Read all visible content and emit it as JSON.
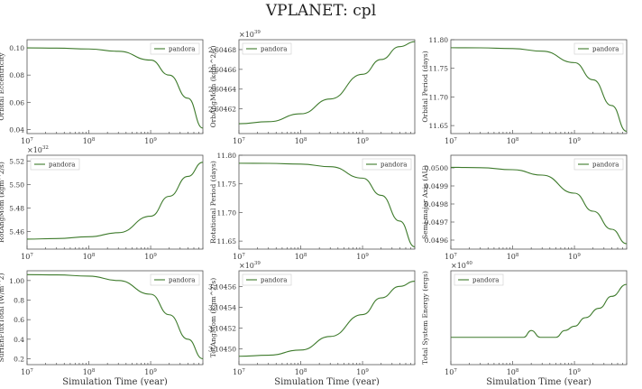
{
  "figure": {
    "title": "VPLANET: cpl",
    "line_color": "#3d7a2b",
    "frame_color": "#555555"
  },
  "chart_data": [
    {
      "type": "line",
      "ylabel": "Orbital Eccentricity",
      "xlabel": "",
      "xscale": "log",
      "xlim": [
        10000000,
        7000000000
      ],
      "ylim": [
        0.037,
        0.106
      ],
      "xticks": [
        {
          "v": 10000000,
          "label": "10",
          "sup": "7"
        },
        {
          "v": 100000000,
          "label": "10",
          "sup": "8"
        },
        {
          "v": 1000000000,
          "label": "10",
          "sup": "9"
        }
      ],
      "yticks": [
        {
          "v": 0.04,
          "label": "0.04"
        },
        {
          "v": 0.06,
          "label": "0.06"
        },
        {
          "v": 0.08,
          "label": "0.08"
        },
        {
          "v": 0.1,
          "label": "0.10"
        }
      ],
      "offset": "",
      "legend": {
        "label": "pandora",
        "loc": "top-right"
      },
      "series": [
        {
          "name": "pandora",
          "x": [
            10000000,
            30000000,
            100000000,
            300000000,
            1000000000,
            2000000000,
            4000000000,
            7000000000
          ],
          "y": [
            0.1,
            0.0998,
            0.0992,
            0.0975,
            0.091,
            0.08,
            0.063,
            0.041
          ]
        }
      ]
    },
    {
      "type": "line",
      "ylabel": "OrbAngMom (kgm^2/s)",
      "xlabel": "",
      "xscale": "log",
      "xlim": [
        10000000,
        7000000000
      ],
      "ylim": [
        2.604595,
        2.60469
      ],
      "xticks": [
        {
          "v": 10000000,
          "label": "10",
          "sup": "7"
        },
        {
          "v": 100000000,
          "label": "10",
          "sup": "8"
        },
        {
          "v": 1000000000,
          "label": "10",
          "sup": "9"
        }
      ],
      "yticks": [
        {
          "v": 2.60462,
          "label": "2.60462"
        },
        {
          "v": 2.60464,
          "label": "2.60464"
        },
        {
          "v": 2.60466,
          "label": "2.60466"
        },
        {
          "v": 2.60468,
          "label": "2.60468"
        }
      ],
      "offset": "×10",
      "offset_exp": "39",
      "legend": {
        "label": "pandora",
        "loc": "top-left"
      },
      "series": [
        {
          "name": "pandora",
          "x": [
            10000000,
            30000000,
            100000000,
            300000000,
            1000000000,
            2000000000,
            4000000000,
            7000000000
          ],
          "y": [
            2.604605,
            2.604607,
            2.604615,
            2.60463,
            2.604655,
            2.60467,
            2.604683,
            2.604688
          ]
        }
      ]
    },
    {
      "type": "line",
      "ylabel": "Orbital Period (days)",
      "xlabel": "",
      "xscale": "log",
      "xlim": [
        10000000,
        7000000000
      ],
      "ylim": [
        11.636,
        11.8
      ],
      "xticks": [
        {
          "v": 10000000,
          "label": "10",
          "sup": "7"
        },
        {
          "v": 100000000,
          "label": "10",
          "sup": "8"
        },
        {
          "v": 1000000000,
          "label": "10",
          "sup": "9"
        }
      ],
      "yticks": [
        {
          "v": 11.65,
          "label": "11.65"
        },
        {
          "v": 11.7,
          "label": "11.70"
        },
        {
          "v": 11.75,
          "label": "11.75"
        },
        {
          "v": 11.8,
          "label": "11.80"
        }
      ],
      "offset": "",
      "legend": {
        "label": "pandora",
        "loc": "top-right"
      },
      "series": [
        {
          "name": "pandora",
          "x": [
            10000000,
            30000000,
            100000000,
            300000000,
            1000000000,
            2000000000,
            4000000000,
            7000000000
          ],
          "y": [
            11.786,
            11.7858,
            11.7845,
            11.78,
            11.76,
            11.73,
            11.685,
            11.64
          ]
        }
      ]
    },
    {
      "type": "line",
      "ylabel": "RotAngMom (kgm^2/s)",
      "xlabel": "",
      "xscale": "log",
      "xlim": [
        10000000,
        7000000000
      ],
      "ylim": [
        5.445,
        5.525
      ],
      "xticks": [
        {
          "v": 10000000,
          "label": "10",
          "sup": "7"
        },
        {
          "v": 100000000,
          "label": "10",
          "sup": "8"
        },
        {
          "v": 1000000000,
          "label": "10",
          "sup": "9"
        }
      ],
      "yticks": [
        {
          "v": 5.46,
          "label": "5.46"
        },
        {
          "v": 5.48,
          "label": "5.48"
        },
        {
          "v": 5.5,
          "label": "5.50"
        },
        {
          "v": 5.52,
          "label": "5.52"
        }
      ],
      "offset": "×10",
      "offset_exp": "32",
      "legend": {
        "label": "pandora",
        "loc": "top-left"
      },
      "series": [
        {
          "name": "pandora",
          "x": [
            10000000,
            30000000,
            100000000,
            300000000,
            1000000000,
            2000000000,
            4000000000,
            7000000000
          ],
          "y": [
            5.4535,
            5.454,
            5.4555,
            5.459,
            5.473,
            5.49,
            5.507,
            5.519
          ]
        }
      ]
    },
    {
      "type": "line",
      "ylabel": "Rotational Period (days)",
      "xlabel": "",
      "xscale": "log",
      "xlim": [
        10000000,
        7000000000
      ],
      "ylim": [
        11.636,
        11.8
      ],
      "xticks": [
        {
          "v": 10000000,
          "label": "10",
          "sup": "7"
        },
        {
          "v": 100000000,
          "label": "10",
          "sup": "8"
        },
        {
          "v": 1000000000,
          "label": "10",
          "sup": "9"
        }
      ],
      "yticks": [
        {
          "v": 11.65,
          "label": "11.65"
        },
        {
          "v": 11.7,
          "label": "11.70"
        },
        {
          "v": 11.75,
          "label": "11.75"
        },
        {
          "v": 11.8,
          "label": "11.80"
        }
      ],
      "offset": "",
      "legend": {
        "label": "pandora",
        "loc": "top-right"
      },
      "series": [
        {
          "name": "pandora",
          "x": [
            10000000,
            30000000,
            100000000,
            300000000,
            1000000000,
            2000000000,
            4000000000,
            7000000000
          ],
          "y": [
            11.786,
            11.7858,
            11.7845,
            11.78,
            11.76,
            11.73,
            11.685,
            11.64
          ]
        }
      ]
    },
    {
      "type": "line",
      "ylabel": "Semi-major Axis (AU)",
      "xlabel": "",
      "xscale": "log",
      "xlim": [
        10000000,
        7000000000
      ],
      "ylim": [
        0.04955,
        0.05007
      ],
      "xticks": [
        {
          "v": 10000000,
          "label": "10",
          "sup": "7"
        },
        {
          "v": 100000000,
          "label": "10",
          "sup": "8"
        },
        {
          "v": 1000000000,
          "label": "10",
          "sup": "9"
        }
      ],
      "yticks": [
        {
          "v": 0.0496,
          "label": "0.0496"
        },
        {
          "v": 0.0497,
          "label": "0.0497"
        },
        {
          "v": 0.0498,
          "label": "0.0498"
        },
        {
          "v": 0.0499,
          "label": "0.0499"
        },
        {
          "v": 0.05,
          "label": "0.0500"
        }
      ],
      "offset": "",
      "legend": {
        "label": "pandora",
        "loc": "top-right"
      },
      "series": [
        {
          "name": "pandora",
          "x": [
            10000000,
            30000000,
            100000000,
            300000000,
            1000000000,
            2000000000,
            4000000000,
            7000000000
          ],
          "y": [
            0.050003,
            0.050001,
            0.04999,
            0.04996,
            0.04986,
            0.04976,
            0.04966,
            0.04958
          ]
        }
      ]
    },
    {
      "type": "line",
      "ylabel": "SurfEnFluxTotal (W/m^2)",
      "xlabel": "Simulation Time (year)",
      "xscale": "log",
      "xlim": [
        10000000,
        7000000000
      ],
      "ylim": [
        0.14,
        1.1
      ],
      "xticks": [
        {
          "v": 10000000,
          "label": "10",
          "sup": "7"
        },
        {
          "v": 100000000,
          "label": "10",
          "sup": "8"
        },
        {
          "v": 1000000000,
          "label": "10",
          "sup": "9"
        }
      ],
      "yticks": [
        {
          "v": 0.2,
          "label": "0.2"
        },
        {
          "v": 0.4,
          "label": "0.4"
        },
        {
          "v": 0.6,
          "label": "0.6"
        },
        {
          "v": 0.8,
          "label": "0.8"
        },
        {
          "v": 1.0,
          "label": "1.00"
        }
      ],
      "offset": "",
      "legend": {
        "label": "pandora",
        "loc": "top-right"
      },
      "series": [
        {
          "name": "pandora",
          "x": [
            10000000,
            30000000,
            100000000,
            300000000,
            1000000000,
            2000000000,
            4000000000,
            7000000000
          ],
          "y": [
            1.06,
            1.058,
            1.045,
            1.0,
            0.86,
            0.65,
            0.4,
            0.2
          ]
        }
      ]
    },
    {
      "type": "line",
      "ylabel": "TotAngMom (kgm^2/s)",
      "xlabel": "Simulation Time (year)",
      "xscale": "log",
      "xlim": [
        10000000,
        7000000000
      ],
      "ylim": [
        3.104485,
        3.104575
      ],
      "xticks": [
        {
          "v": 10000000,
          "label": "10",
          "sup": "7"
        },
        {
          "v": 100000000,
          "label": "10",
          "sup": "8"
        },
        {
          "v": 1000000000,
          "label": "10",
          "sup": "9"
        }
      ],
      "yticks": [
        {
          "v": 3.1045,
          "label": "3.10450"
        },
        {
          "v": 3.10452,
          "label": "3.10452"
        },
        {
          "v": 3.10454,
          "label": "3.10454"
        },
        {
          "v": 3.10456,
          "label": "3.10456"
        }
      ],
      "offset": "×10",
      "offset_exp": "39",
      "legend": {
        "label": "pandora",
        "loc": "top-left"
      },
      "series": [
        {
          "name": "pandora",
          "x": [
            10000000,
            30000000,
            100000000,
            300000000,
            1000000000,
            2000000000,
            4000000000,
            7000000000
          ],
          "y": [
            3.104493,
            3.104494,
            3.104499,
            3.104512,
            3.104533,
            3.104549,
            3.10456,
            3.104565
          ]
        }
      ]
    },
    {
      "type": "line",
      "ylabel": "Total System Energy (ergs)",
      "xlabel": "Simulation Time (year)",
      "xscale": "log",
      "xlim": [
        10000000,
        7000000000
      ],
      "ylim": [
        -1,
        10
      ],
      "xticks": [
        {
          "v": 10000000,
          "label": "10",
          "sup": "7"
        },
        {
          "v": 100000000,
          "label": "10",
          "sup": "8"
        },
        {
          "v": 1000000000,
          "label": "10",
          "sup": "9"
        }
      ],
      "yticks": [],
      "offset": "×10",
      "offset_exp": "40",
      "legend": {
        "label": "pandora",
        "loc": "top-left"
      },
      "series": [
        {
          "name": "pandora",
          "x": [
            10000000,
            100000000,
            150000000,
            200000000,
            280000000,
            350000000,
            500000000,
            700000000,
            1000000000,
            1500000000,
            2500000000,
            4000000000,
            7000000000
          ],
          "y": [
            2.2,
            2.2,
            2.2,
            3.0,
            2.2,
            2.2,
            2.2,
            3.0,
            3.5,
            4.5,
            5.6,
            7.0,
            8.4
          ]
        }
      ]
    }
  ]
}
